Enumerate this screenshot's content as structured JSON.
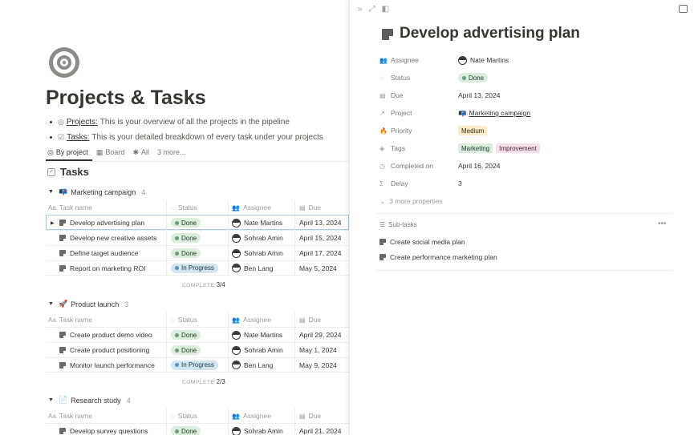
{
  "page": {
    "title": "Projects & Tasks",
    "bullets": [
      {
        "link": "Projects:",
        "text": "This is your overview of all the projects in the pipeline"
      },
      {
        "link": "Tasks:",
        "text": "This is your detailed breakdown of every task under your projects"
      }
    ],
    "views": [
      {
        "icon": "◎",
        "label": "By project"
      },
      {
        "icon": "▦",
        "label": "Board"
      },
      {
        "icon": "✱",
        "label": "All"
      },
      {
        "icon": "",
        "label": "3 more..."
      }
    ],
    "database_title": "Tasks"
  },
  "columns": {
    "name": "Task name",
    "status": "Status",
    "assignee": "Assignee",
    "due": "Due",
    "name_icon": "Aa"
  },
  "groups": [
    {
      "icon": "📭",
      "name": "Marketing campaign",
      "count": "4",
      "complete_label": "COMPLETE",
      "complete_value": "3/4",
      "rows": [
        {
          "name": "Develop advertising plan",
          "status": "Done",
          "assignee": "Nate Martins",
          "due": "April 13, 2024"
        },
        {
          "name": "Develop new creative assets",
          "status": "Done",
          "assignee": "Sohrab Amin",
          "due": "April 15, 2024"
        },
        {
          "name": "Define target audience",
          "status": "Done",
          "assignee": "Sohrab Amin",
          "due": "April 17, 2024"
        },
        {
          "name": "Report on marketing ROI",
          "status": "In Progress",
          "assignee": "Ben Lang",
          "due": "May 5, 2024"
        }
      ]
    },
    {
      "icon": "🚀",
      "name": "Product launch",
      "count": "3",
      "complete_label": "COMPLETE",
      "complete_value": "2/3",
      "rows": [
        {
          "name": "Create product demo video",
          "status": "Done",
          "assignee": "Nate Martins",
          "due": "April 29, 2024"
        },
        {
          "name": "Create product positioning",
          "status": "Done",
          "assignee": "Sohrab Amin",
          "due": "May 1, 2024"
        },
        {
          "name": "Monitor launch performance",
          "status": "In Progress",
          "assignee": "Ben Lang",
          "due": "May 9, 2024"
        }
      ]
    },
    {
      "icon": "📄",
      "name": "Research study",
      "count": "4",
      "rows": [
        {
          "name": "Develop survey questions",
          "status": "Done",
          "assignee": "Sohrab Amin",
          "due": "April 21, 2024"
        }
      ]
    }
  ],
  "detail": {
    "title": "Develop advertising plan",
    "properties": {
      "assignee_label": "Assignee",
      "assignee": "Nate Martins",
      "status_label": "Status",
      "status": "Done",
      "due_label": "Due",
      "due": "April 13, 2024",
      "project_label": "Project",
      "project": "Marketing campaign",
      "priority_label": "Priority",
      "priority": "Medium",
      "tags_label": "Tags",
      "tag1": "Marketing",
      "tag2": "Improvement",
      "completed_label": "Completed on",
      "completed": "April 16, 2024",
      "delay_label": "Delay",
      "delay": "3"
    },
    "more_properties": "3 more properties",
    "subtasks_label": "Sub-tasks",
    "subtasks": [
      "Create social media plan",
      "Create performance marketing plan"
    ]
  },
  "colors": {
    "done_bg": "#dbeddb",
    "progress_bg": "#d3e5ef",
    "medium_bg": "#fdecc8",
    "improvement_bg": "#f5e0e9",
    "selection": "#a5cff0"
  }
}
